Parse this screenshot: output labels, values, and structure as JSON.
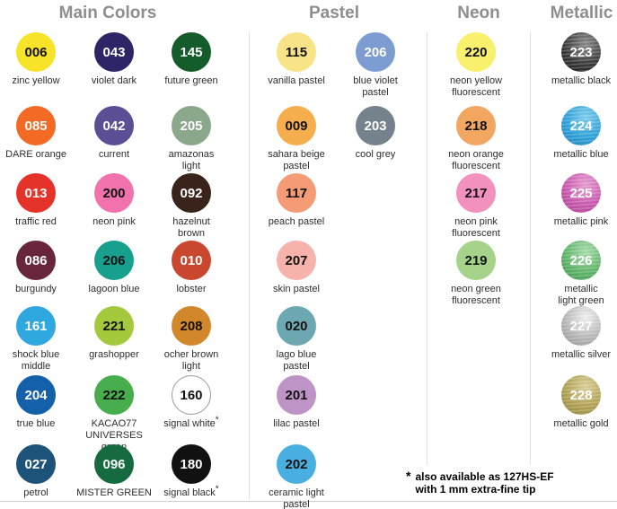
{
  "sections": {
    "main": {
      "title": "Main Colors"
    },
    "pastel": {
      "title": "Pastel"
    },
    "neon": {
      "title": "Neon"
    },
    "metallic": {
      "title": "Metallic"
    }
  },
  "footnote": {
    "star": "*",
    "line1": "also available as 127HS-EF",
    "line2": "with 1 mm extra-fine tip"
  },
  "swatches": [
    {
      "code": "006",
      "name": "zinc yellow",
      "col": "m1",
      "row": 0,
      "bg": "#F7E327",
      "fg": "#111111"
    },
    {
      "code": "043",
      "name": "violet dark",
      "col": "m2",
      "row": 0,
      "bg": "#2E2566",
      "fg": "#ffffff"
    },
    {
      "code": "145",
      "name": "future green",
      "col": "m3",
      "row": 0,
      "bg": "#155C2B",
      "fg": "#ffffff"
    },
    {
      "code": "085",
      "name": "DARE orange",
      "col": "m1",
      "row": 1,
      "bg": "#F26A24",
      "fg": "#ffffff"
    },
    {
      "code": "042",
      "name": "current",
      "col": "m2",
      "row": 1,
      "bg": "#5C4E94",
      "fg": "#ffffff"
    },
    {
      "code": "205",
      "name": "amazonas\nlight",
      "col": "m3",
      "row": 1,
      "bg": "#8BA88C",
      "fg": "#ffffff"
    },
    {
      "code": "013",
      "name": "traffic red",
      "col": "m1",
      "row": 2,
      "bg": "#E5332A",
      "fg": "#ffffff"
    },
    {
      "code": "200",
      "name": "neon pink",
      "col": "m2",
      "row": 2,
      "bg": "#F172AD",
      "fg": "#111111"
    },
    {
      "code": "092",
      "name": "hazelnut\nbrown",
      "col": "m3",
      "row": 2,
      "bg": "#3A231B",
      "fg": "#ffffff"
    },
    {
      "code": "086",
      "name": "burgundy",
      "col": "m1",
      "row": 3,
      "bg": "#68263D",
      "fg": "#ffffff"
    },
    {
      "code": "206",
      "name": "lagoon blue",
      "col": "m2",
      "row": 3,
      "bg": "#17A08E",
      "fg": "#111111"
    },
    {
      "code": "010",
      "name": "lobster",
      "col": "m3",
      "row": 3,
      "bg": "#C8472E",
      "fg": "#ffffff"
    },
    {
      "code": "161",
      "name": "shock blue\nmiddle",
      "col": "m1",
      "row": 4,
      "bg": "#2FA8DF",
      "fg": "#ffffff"
    },
    {
      "code": "221",
      "name": "grashopper",
      "col": "m2",
      "row": 4,
      "bg": "#A5C93C",
      "fg": "#111111"
    },
    {
      "code": "208",
      "name": "ocher brown\nlight",
      "col": "m3",
      "row": 4,
      "bg": "#D2872B",
      "fg": "#111111"
    },
    {
      "code": "204",
      "name": "true blue",
      "col": "m1",
      "row": 5,
      "bg": "#1561A9",
      "fg": "#ffffff"
    },
    {
      "code": "222",
      "name": "KACAO77\nUNIVERSES\ngreen",
      "col": "m2",
      "row": 5,
      "bg": "#47AD4D",
      "fg": "#111111"
    },
    {
      "code": "160",
      "name": "signal white",
      "col": "m3",
      "row": 5,
      "bg": "#FFFFFF",
      "fg": "#111111",
      "border": "#9b9b9b",
      "star": true
    },
    {
      "code": "027",
      "name": "petrol",
      "col": "m1",
      "row": 6,
      "bg": "#1D5379",
      "fg": "#ffffff"
    },
    {
      "code": "096",
      "name": "MISTER GREEN",
      "col": "m2",
      "row": 6,
      "bg": "#156B3F",
      "fg": "#ffffff"
    },
    {
      "code": "180",
      "name": "signal black",
      "col": "m3",
      "row": 6,
      "bg": "#111111",
      "fg": "#ffffff",
      "star": true
    },
    {
      "code": "115",
      "name": "vanilla pastel",
      "col": "p1",
      "row": 0,
      "bg": "#F9E387",
      "fg": "#111111"
    },
    {
      "code": "206",
      "name": "blue violet\npastel",
      "col": "p2",
      "row": 0,
      "bg": "#7D9CD1",
      "fg": "#ffffff"
    },
    {
      "code": "009",
      "name": "sahara beige\npastel",
      "col": "p1",
      "row": 1,
      "bg": "#F5AE4D",
      "fg": "#111111"
    },
    {
      "code": "203",
      "name": "cool grey",
      "col": "p2",
      "row": 1,
      "bg": "#75818D",
      "fg": "#ffffff"
    },
    {
      "code": "117",
      "name": "peach pastel",
      "col": "p1",
      "row": 2,
      "bg": "#F59C76",
      "fg": "#111111"
    },
    {
      "code": "207",
      "name": "skin pastel",
      "col": "p1",
      "row": 3,
      "bg": "#F5B3AB",
      "fg": "#111111"
    },
    {
      "code": "020",
      "name": "lago blue\npastel",
      "col": "p1",
      "row": 4,
      "bg": "#6DA8B2",
      "fg": "#111111"
    },
    {
      "code": "201",
      "name": "lilac pastel",
      "col": "p1",
      "row": 5,
      "bg": "#BE93C6",
      "fg": "#111111"
    },
    {
      "code": "202",
      "name": "ceramic light\npastel",
      "col": "p1",
      "row": 6,
      "bg": "#49AFE0",
      "fg": "#111111"
    },
    {
      "code": "220",
      "name": "neon yellow\nfluorescent",
      "col": "n1",
      "row": 0,
      "bg": "#F9F06E",
      "fg": "#111111"
    },
    {
      "code": "218",
      "name": "neon orange\nfluorescent",
      "col": "n1",
      "row": 1,
      "bg": "#F2A761",
      "fg": "#111111"
    },
    {
      "code": "217",
      "name": "neon pink\nfluorescent",
      "col": "n1",
      "row": 2,
      "bg": "#F291BD",
      "fg": "#111111"
    },
    {
      "code": "219",
      "name": "neon green\nfluorescent",
      "col": "n1",
      "row": 3,
      "bg": "#A4D389",
      "fg": "#111111"
    },
    {
      "code": "223",
      "name": "metallic black",
      "col": "mt1",
      "row": 0,
      "fg": "#ffffff",
      "metallic": {
        "light": "#8a8a8a",
        "base": "#3a3a3a",
        "dark": "#161616"
      }
    },
    {
      "code": "224",
      "name": "metallic blue",
      "col": "mt1",
      "row": 1,
      "fg": "#ffffff",
      "metallic": {
        "light": "#7ECBEC",
        "base": "#2D9FD6",
        "dark": "#1E7FB0"
      }
    },
    {
      "code": "225",
      "name": "metallic pink",
      "col": "mt1",
      "row": 2,
      "fg": "#ffffff",
      "metallic": {
        "light": "#E49CD0",
        "base": "#C757AC",
        "dark": "#A53E8C"
      }
    },
    {
      "code": "226",
      "name": "metallic\nlight green",
      "col": "mt1",
      "row": 3,
      "fg": "#ffffff",
      "metallic": {
        "light": "#A6DAA9",
        "base": "#5FB369",
        "dark": "#3E9150"
      }
    },
    {
      "code": "227",
      "name": "metallic silver",
      "col": "mt1",
      "row": 4,
      "fg": "#ffffff",
      "metallic": {
        "light": "#EFEFEF",
        "base": "#B5B5B5",
        "dark": "#8E8E8E"
      }
    },
    {
      "code": "228",
      "name": "metallic gold",
      "col": "mt1",
      "row": 5,
      "fg": "#ffffff",
      "metallic": {
        "light": "#D8CD96",
        "base": "#AF9F52",
        "dark": "#8F8140"
      }
    }
  ]
}
